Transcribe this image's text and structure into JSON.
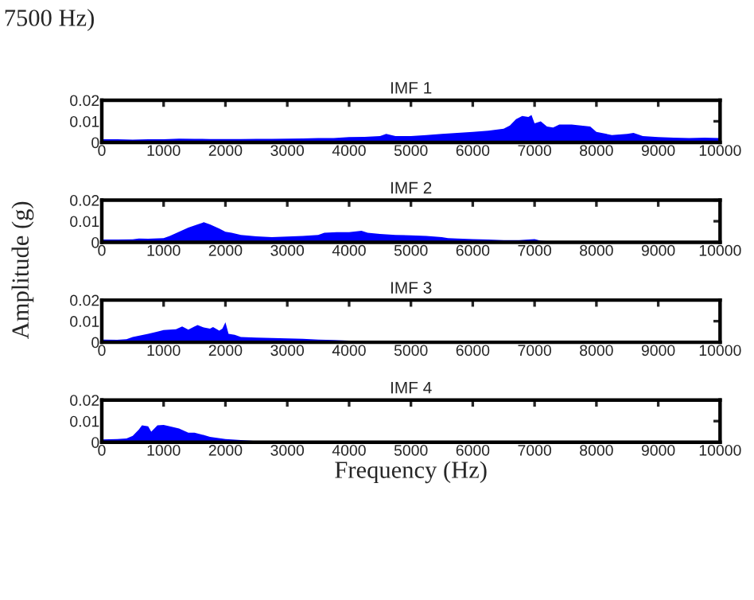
{
  "chart_data": [
    {
      "type": "area",
      "title": "IMF 1",
      "ylabel": "Amplitude (g)",
      "annotations": [
        "7500 Hz)"
      ],
      "color": "#0000ff",
      "x": [
        0,
        250,
        500,
        750,
        1000,
        1250,
        1500,
        1750,
        2000,
        2250,
        2500,
        2750,
        3000,
        3250,
        3500,
        3750,
        4000,
        4250,
        4500,
        4600,
        4750,
        5000,
        5250,
        5500,
        5750,
        6000,
        6250,
        6500,
        6600,
        6700,
        6800,
        6900,
        6950,
        7000,
        7100,
        7200,
        7300,
        7400,
        7500,
        7600,
        7750,
        7900,
        8000,
        8250,
        8500,
        8600,
        8750,
        9000,
        9250,
        9500,
        9750,
        10000
      ],
      "values": [
        0.0015,
        0.0015,
        0.0013,
        0.0015,
        0.0015,
        0.0018,
        0.0017,
        0.0016,
        0.0016,
        0.0016,
        0.0017,
        0.0017,
        0.0018,
        0.0019,
        0.002,
        0.002,
        0.0025,
        0.0026,
        0.003,
        0.004,
        0.003,
        0.003,
        0.0035,
        0.004,
        0.0045,
        0.005,
        0.0055,
        0.0065,
        0.008,
        0.011,
        0.0125,
        0.012,
        0.013,
        0.009,
        0.01,
        0.0075,
        0.007,
        0.0085,
        0.0085,
        0.0085,
        0.008,
        0.0075,
        0.005,
        0.0035,
        0.004,
        0.0045,
        0.003,
        0.0025,
        0.0022,
        0.002,
        0.0022,
        0.002
      ],
      "xlim": [
        0,
        10000
      ],
      "ylim": [
        0,
        0.02
      ],
      "xticks": [
        0,
        1000,
        2000,
        3000,
        4000,
        5000,
        6000,
        7000,
        8000,
        9000,
        10000
      ],
      "yticks": [
        0,
        0.01,
        0.02
      ]
    },
    {
      "type": "area",
      "title": "IMF 2",
      "color": "#0000ff",
      "x": [
        0,
        250,
        500,
        600,
        750,
        1000,
        1100,
        1250,
        1400,
        1550,
        1650,
        1750,
        1900,
        2000,
        2100,
        2250,
        2500,
        2750,
        3000,
        3250,
        3500,
        3600,
        3800,
        4000,
        4200,
        4300,
        4500,
        4750,
        5000,
        5250,
        5500,
        5600,
        5750,
        6000,
        6250,
        6500,
        6750,
        7000,
        7100,
        7250,
        7500,
        8000,
        9000,
        10000
      ],
      "values": [
        0.0013,
        0.0013,
        0.0014,
        0.0018,
        0.0017,
        0.002,
        0.003,
        0.005,
        0.007,
        0.0085,
        0.0095,
        0.0085,
        0.0065,
        0.005,
        0.0045,
        0.0035,
        0.0028,
        0.0025,
        0.0027,
        0.003,
        0.0035,
        0.0045,
        0.0048,
        0.0048,
        0.0055,
        0.0045,
        0.004,
        0.0035,
        0.0033,
        0.003,
        0.0025,
        0.002,
        0.0018,
        0.0015,
        0.0013,
        0.001,
        0.001,
        0.0015,
        0.0008,
        0.0005,
        0.0004,
        0.0004,
        0.0004,
        0.0004
      ],
      "xlim": [
        0,
        10000
      ],
      "ylim": [
        0,
        0.02
      ],
      "xticks": [
        0,
        1000,
        2000,
        3000,
        4000,
        5000,
        6000,
        7000,
        8000,
        9000,
        10000
      ],
      "yticks": [
        0,
        0.01,
        0.02
      ]
    },
    {
      "type": "area",
      "title": "IMF 3",
      "color": "#0000ff",
      "x": [
        0,
        250,
        400,
        500,
        750,
        900,
        1000,
        1200,
        1300,
        1400,
        1500,
        1550,
        1650,
        1750,
        1800,
        1900,
        1950,
        2000,
        2050,
        2150,
        2250,
        2500,
        2750,
        3000,
        3250,
        3500,
        3750,
        4000,
        4250,
        4500,
        5000,
        7000,
        10000
      ],
      "values": [
        0.0013,
        0.0012,
        0.0015,
        0.0025,
        0.004,
        0.005,
        0.0058,
        0.0062,
        0.0075,
        0.006,
        0.0075,
        0.0082,
        0.007,
        0.0065,
        0.0072,
        0.0055,
        0.0065,
        0.0095,
        0.004,
        0.0035,
        0.0025,
        0.0022,
        0.002,
        0.0018,
        0.0016,
        0.0013,
        0.0011,
        0.0008,
        0.0005,
        0.0003,
        0.0003,
        0.0003,
        0.0003
      ],
      "xlim": [
        0,
        10000
      ],
      "ylim": [
        0,
        0.02
      ],
      "xticks": [
        0,
        1000,
        2000,
        3000,
        4000,
        5000,
        6000,
        7000,
        8000,
        9000,
        10000
      ],
      "yticks": [
        0,
        0.01,
        0.02
      ]
    },
    {
      "type": "area",
      "title": "IMF 4",
      "xlabel": "Frequency (Hz)",
      "color": "#0000ff",
      "x": [
        0,
        250,
        400,
        500,
        600,
        650,
        750,
        800,
        900,
        1000,
        1100,
        1250,
        1400,
        1500,
        1600,
        1750,
        2000,
        2250,
        2500,
        3000,
        5000,
        10000
      ],
      "values": [
        0.0013,
        0.0015,
        0.0018,
        0.003,
        0.006,
        0.008,
        0.0075,
        0.005,
        0.008,
        0.0082,
        0.0075,
        0.0065,
        0.0045,
        0.0045,
        0.0038,
        0.0025,
        0.0015,
        0.001,
        0.0005,
        0.0004,
        0.0004,
        0.0004
      ],
      "xlim": [
        0,
        10000
      ],
      "ylim": [
        0,
        0.02
      ],
      "xticks": [
        0,
        1000,
        2000,
        3000,
        4000,
        5000,
        6000,
        7000,
        8000,
        9000,
        10000
      ],
      "yticks": [
        0,
        0.01,
        0.02
      ]
    }
  ]
}
